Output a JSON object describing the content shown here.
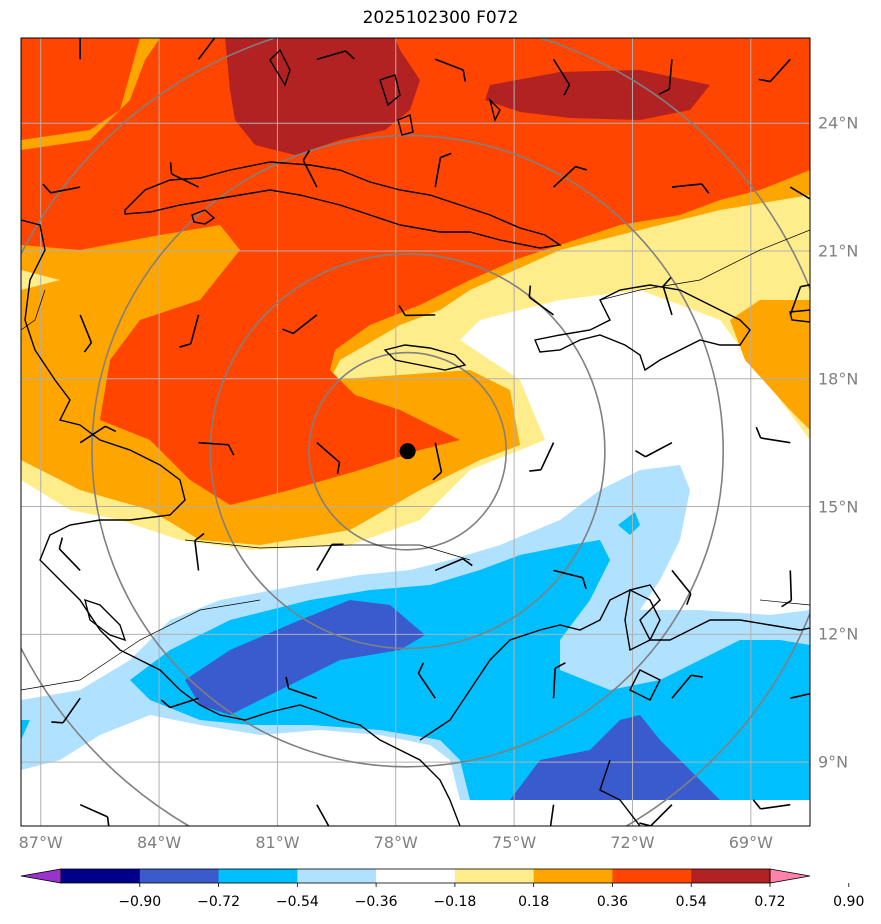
{
  "title": "2025102300 F072",
  "storm_marker": {
    "lon": -77.7,
    "lat": 16.3,
    "color": "#000000"
  },
  "map": {
    "lon_range": [
      -87.5,
      -67.5
    ],
    "lat_range": [
      7.5,
      26.0
    ],
    "lon_ticks": [
      {
        "value": -87,
        "label": "87°W"
      },
      {
        "value": -84,
        "label": "84°W"
      },
      {
        "value": -81,
        "label": "81°W"
      },
      {
        "value": -78,
        "label": "78°W"
      },
      {
        "value": -75,
        "label": "75°W"
      },
      {
        "value": -72,
        "label": "72°W"
      },
      {
        "value": -69,
        "label": "69°W"
      }
    ],
    "lat_ticks": [
      {
        "value": 24,
        "label": "24°N"
      },
      {
        "value": 21,
        "label": "21°N"
      },
      {
        "value": 18,
        "label": "18°N"
      },
      {
        "value": 15,
        "label": "15°N"
      },
      {
        "value": 12,
        "label": "12°N"
      },
      {
        "value": 9,
        "label": "9°N"
      }
    ],
    "range_rings_deg": [
      2.5,
      5,
      8,
      11
    ],
    "gridline_color": "#b0b0b0",
    "ring_color": "#808080"
  },
  "colorbar": {
    "levels": [
      "−0.90",
      "−0.72",
      "−0.54",
      "−0.36",
      "−0.18",
      "0.18",
      "0.36",
      "0.54",
      "0.72",
      "0.90"
    ],
    "colors": [
      "#9a32cd",
      "#00008b",
      "#3a5bcd",
      "#00bfff",
      "#b0e2ff",
      "#ffffff",
      "#ffec8b",
      "#ffa500",
      "#ff4500",
      "#b22222",
      "#ff82ab"
    ]
  },
  "wind_barbs": [
    {
      "lon": -86,
      "lat": 25.5
    },
    {
      "lon": -83,
      "lat": 25.5
    },
    {
      "lon": -80,
      "lat": 25.5
    },
    {
      "lon": -77,
      "lat": 25.5
    },
    {
      "lon": -74,
      "lat": 25.5
    },
    {
      "lon": -71,
      "lat": 25.5
    },
    {
      "lon": -68,
      "lat": 25.5
    },
    {
      "lon": -86,
      "lat": 22.5
    },
    {
      "lon": -83,
      "lat": 22.5
    },
    {
      "lon": -80,
      "lat": 22.5
    },
    {
      "lon": -77,
      "lat": 22.5
    },
    {
      "lon": -74,
      "lat": 22.5
    },
    {
      "lon": -71,
      "lat": 22.5
    },
    {
      "lon": -68,
      "lat": 22.5
    },
    {
      "lon": -86,
      "lat": 19.5
    },
    {
      "lon": -83,
      "lat": 19.5
    },
    {
      "lon": -80,
      "lat": 19.5
    },
    {
      "lon": -77,
      "lat": 19.5
    },
    {
      "lon": -74,
      "lat": 19.5
    },
    {
      "lon": -71,
      "lat": 19.5
    },
    {
      "lon": -68,
      "lat": 19.5
    },
    {
      "lon": -86,
      "lat": 16.5
    },
    {
      "lon": -83,
      "lat": 16.5
    },
    {
      "lon": -80,
      "lat": 16.5
    },
    {
      "lon": -77,
      "lat": 16.5
    },
    {
      "lon": -74,
      "lat": 16.5
    },
    {
      "lon": -71,
      "lat": 16.5
    },
    {
      "lon": -68,
      "lat": 16.5
    },
    {
      "lon": -86,
      "lat": 13.5
    },
    {
      "lon": -83,
      "lat": 13.5
    },
    {
      "lon": -80,
      "lat": 13.5
    },
    {
      "lon": -77,
      "lat": 13.5
    },
    {
      "lon": -74,
      "lat": 13.5
    },
    {
      "lon": -71,
      "lat": 13.5
    },
    {
      "lon": -68,
      "lat": 13.5
    },
    {
      "lon": -86,
      "lat": 10.5
    },
    {
      "lon": -83,
      "lat": 10.5
    },
    {
      "lon": -80,
      "lat": 10.5
    },
    {
      "lon": -77,
      "lat": 10.5
    },
    {
      "lon": -74,
      "lat": 10.5
    },
    {
      "lon": -71,
      "lat": 10.5
    },
    {
      "lon": -68,
      "lat": 10.5
    },
    {
      "lon": -86,
      "lat": 8.0
    },
    {
      "lon": -80,
      "lat": 8.0
    },
    {
      "lon": -74,
      "lat": 8.0
    },
    {
      "lon": -71,
      "lat": 8.0
    },
    {
      "lon": -68,
      "lat": 8.0
    }
  ]
}
